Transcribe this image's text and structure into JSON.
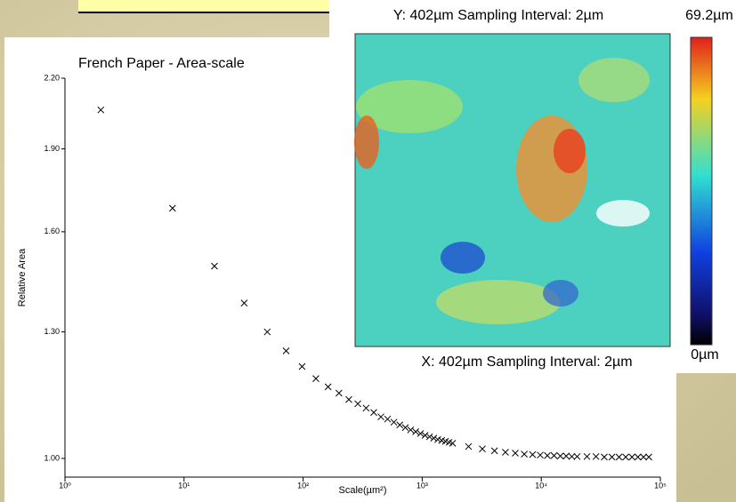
{
  "chart_data": {
    "type": "scatter",
    "title": "French Paper - Area-scale",
    "xlabel": "Scale(µm²)",
    "ylabel": "Relative Area",
    "xscale": "log",
    "yscale": "log",
    "xlim": [
      1,
      100000
    ],
    "ylim": [
      0.962,
      2.2
    ],
    "xticks": [
      {
        "value": 1,
        "label": "10⁰"
      },
      {
        "value": 10,
        "label": "10¹"
      },
      {
        "value": 100,
        "label": "10²"
      },
      {
        "value": 1000,
        "label": "10³"
      },
      {
        "value": 10000,
        "label": "10⁴"
      },
      {
        "value": 100000,
        "label": "10⁵"
      }
    ],
    "yticks": [
      {
        "value": 1.0,
        "label": "1.00"
      },
      {
        "value": 1.3,
        "label": "1.30"
      },
      {
        "value": 1.6,
        "label": "1.60"
      },
      {
        "value": 1.9,
        "label": "1.90"
      },
      {
        "value": 2.2,
        "label": "2.20"
      }
    ],
    "color": "#000000",
    "x": [
      2,
      8,
      18,
      32,
      50,
      72,
      98,
      128,
      162,
      200,
      242,
      288,
      338,
      392,
      450,
      512,
      578,
      648,
      722,
      800,
      882,
      968,
      1058,
      1152,
      1250,
      1352,
      1458,
      1568,
      1682,
      1800,
      2450,
      3200,
      4050,
      5000,
      6050,
      7200,
      8450,
      9800,
      11250,
      12800,
      14450,
      16200,
      18050,
      20000,
      24200,
      28800,
      33800,
      39200,
      45000,
      51200,
      57800,
      64800,
      72200,
      80000
    ],
    "values": [
      2.06,
      1.68,
      1.49,
      1.38,
      1.3,
      1.25,
      1.21,
      1.18,
      1.16,
      1.145,
      1.13,
      1.12,
      1.11,
      1.1,
      1.09,
      1.085,
      1.078,
      1.072,
      1.066,
      1.061,
      1.057,
      1.053,
      1.049,
      1.046,
      1.043,
      1.04,
      1.038,
      1.036,
      1.034,
      1.032,
      1.025,
      1.02,
      1.016,
      1.013,
      1.011,
      1.009,
      1.008,
      1.007,
      1.006,
      1.006,
      1.005,
      1.005,
      1.004,
      1.004,
      1.004,
      1.004,
      1.003,
      1.003,
      1.003,
      1.003,
      1.003,
      1.003,
      1.003,
      1.003
    ]
  },
  "image": {
    "y_caption": "Y: 402µm Sampling Interval: 2µm",
    "x_caption": "X: 402µm Sampling Interval: 2µm",
    "scale_max": "69.2µm",
    "scale_min": "0µm"
  }
}
